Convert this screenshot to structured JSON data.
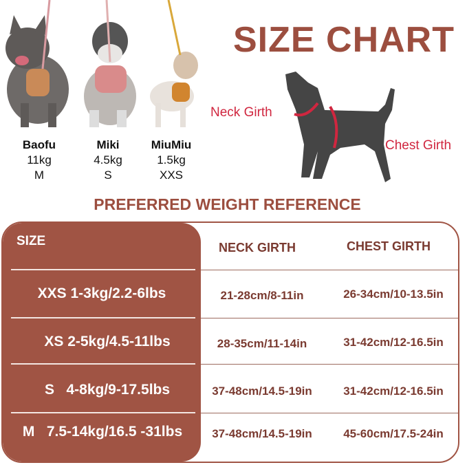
{
  "title": "SIZE CHART",
  "dogs": [
    {
      "name": "Baofu",
      "weight": "11kg",
      "size": "M"
    },
    {
      "name": "Miki",
      "weight": "4.5kg",
      "size": "S"
    },
    {
      "name": "MiuMiu",
      "weight": "1.5kg",
      "size": "XXS"
    }
  ],
  "diagram": {
    "neck_label": "Neck Girth",
    "chest_label": "Chest Girth"
  },
  "subtitle": "PREFERRED WEIGHT REFERENCE",
  "table": {
    "headers": [
      "SIZE",
      "NECK GIRTH",
      "CHEST GIRTH"
    ],
    "rows": [
      {
        "size": "XXS 1-3kg/2.2-6lbs",
        "neck": "21-28cm/8-11in",
        "chest": "26-34cm/10-13.5in"
      },
      {
        "size": "XS 2-5kg/4.5-11lbs",
        "neck": "28-35cm/11-14in",
        "chest": "31-42cm/12-16.5in"
      },
      {
        "size": "S   4-8kg/9-17.5lbs",
        "neck": "37-48cm/14.5-19in",
        "chest": "31-42cm/12-16.5in"
      },
      {
        "size": "M   7.5-14kg/16.5 -31lbs",
        "neck": "37-48cm/14.5-19in",
        "chest": "45-60cm/17.5-24in"
      }
    ]
  },
  "colors": {
    "brand": "#a05444",
    "girth_line": "#d0263f",
    "silhouette": "#454545"
  }
}
